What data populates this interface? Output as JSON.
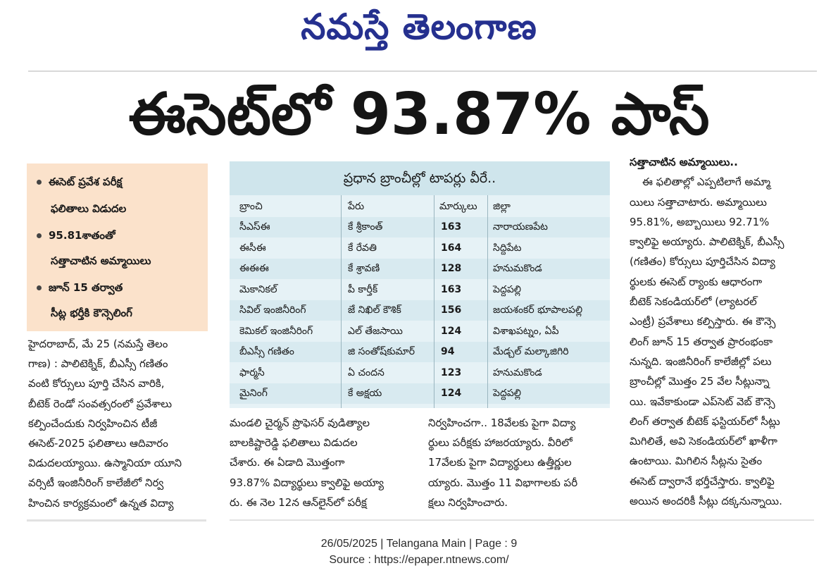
{
  "masthead": "నమస్తే తెలంగాణ",
  "headline": "ఈసెట్‌లో 93.87% పాస్",
  "highlights": [
    {
      "l1": "ఈసెట్ ప్రవేశ పరీక్ష",
      "l2": "ఫలితాలు విడుదల"
    },
    {
      "l1": "95.81శాతంతో",
      "l2": "సత్తాచాటిన అమ్మాయిలు"
    },
    {
      "l1": "జూన్ 15 తర్వాత",
      "l2": "సీట్ల భర్తీకి కౌన్సెలింగ్"
    }
  ],
  "col1_lines": [
    "హైదరాబాద్, మే 25 (నమస్తే తెలం",
    "గాణ) : పాలిటెక్నిక్, బీఎస్సీ గణితం",
    "వంటి కోర్సులు పూర్తి చేసిన వారికి,",
    "బీటెక్ రెండో సంవత్సరంలో ప్రవేశాలు",
    "కల్పించేందుకు నిర్వహించిన టీజీ",
    "ఈసెట్-2025 ఫలితాలు ఆదివారం",
    "విడుదలయ్యాయి. ఉస్మానియా యూని",
    "వర్సిటీ ఇంజినీరింగ్ కాలేజీలో నిర్వ",
    "హించిన కార్యక్రమంలో ఉన్నత విద్యా"
  ],
  "col2_lines": [
    "మండలి చైర్మన్ ప్రొఫెసర్ వుడిత్యాల",
    "బాలకిష్టారెడ్డి ఫలితాలు విడుదల",
    "చేశారు. ఈ ఏడాది మొత్తంగా",
    "93.87% విద్యార్థులు క్వాలిఫై అయ్యా",
    "రు. ఈ నెల 12న ఆన్‌లైన్‌లో పరీక్ష"
  ],
  "col3_lines": [
    "నిర్వహించగా.. 18వేలకు పైగా విద్యా",
    "ర్థులు పరీక్షకు హాజరయ్యారు. వీరిలో",
    "17వేలకు పైగా విద్యార్థులు ఉత్తీర్ణుల",
    "య్యారు. మొత్తం 11 విభాగాలకు పరీ",
    "క్షలు నిర్వహించారు."
  ],
  "col4_heading": "సత్తాచాటిన అమ్మాయిలు..",
  "col4_lines": [
    "ఈ ఫలితాల్లో ఎప్పటిలాగే అమ్మా",
    "యిలు సత్తాచాటారు. అమ్మాయిలు",
    "95.81%, అబ్బాయిలు 92.71%",
    "క్వాలిఫై అయ్యారు. పాలిటెక్నిక్, బీఎస్సీ",
    "(గణితం) కోర్సులు పూర్తిచేసిన విద్యా",
    "ర్థులకు ఈసెట్ ర్యాంకు ఆధారంగా",
    "బీటెక్ సెకండియర్‌లో (ల్యాటరల్",
    "ఎంట్రీ) ప్రవేశాలు కల్పిస్తారు. ఈ కౌన్సె",
    "లింగ్ జూన్ 15 తర్వాత ప్రారంభంకా",
    "నున్నది. ఇంజినీరింగ్ కాలేజీల్లో పలు",
    "బ్రాంచీల్లో మొత్తం 25 వేల సీట్లున్నా",
    "యి. ఇవేకాకుండా ఎప్‌సెట్ వెబ్ కౌన్సె",
    "లింగ్ తర్వాత బీటెక్ ఫస్టియర్‌లో సీట్లు",
    "మిగిలితే, అవి సెకండియర్‌లో ఖాళీగా",
    "ఉంటాయి. మిగిలిన సీట్లను సైతం",
    "ఈసెట్ ద్వారానే భర్తీచేస్తారు. క్వాలిఫై",
    "అయిన అందరికీ సీట్లు దక్కనున్నాయి."
  ],
  "table": {
    "title": "ప్రధాన బ్రాంచీల్లో టాపర్లు వీరే..",
    "headers": [
      "బ్రాంచి",
      "పేరు",
      "మార్కులు",
      "జిల్లా"
    ],
    "rows": [
      [
        "సీఎస్ఈ",
        "కే శ్రీకాంత్",
        "163",
        "నారాయణపేట"
      ],
      [
        "ఈసీఈ",
        "కే రేవతి",
        "164",
        "సిద్దిపేట"
      ],
      [
        "ఈఈఈ",
        "కే శ్రావణి",
        "128",
        "హనుమకొండ"
      ],
      [
        "మెకానికల్",
        "పీ కార్తీక్",
        "163",
        "పెద్దపల్లి"
      ],
      [
        "సివిల్ ఇంజినీరింగ్",
        "జే నిఖిల్ కౌశిక్",
        "156",
        "జయశంకర్ భూపాలపల్లి"
      ],
      [
        "కెమికల్ ఇంజినీరింగ్",
        "ఎల్ తేజసాయి",
        "124",
        "విశాఖపట్నం, ఏపీ"
      ],
      [
        "బీఎస్సీ గణితం",
        "జి సంతోష్‌కుమార్",
        "94",
        "మేడ్చల్ మల్కాజిగిరి"
      ],
      [
        "ఫార్మసీ",
        "ఏ చందన",
        "123",
        "హనుమకొండ"
      ],
      [
        "మైనింగ్",
        "కే అక్షయ",
        "124",
        "పెద్దపల్లి"
      ]
    ]
  },
  "footer": {
    "line1": "26/05/2025 | Telangana Main | Page : 9",
    "line2": "Source : https://epaper.ntnews.com/"
  }
}
